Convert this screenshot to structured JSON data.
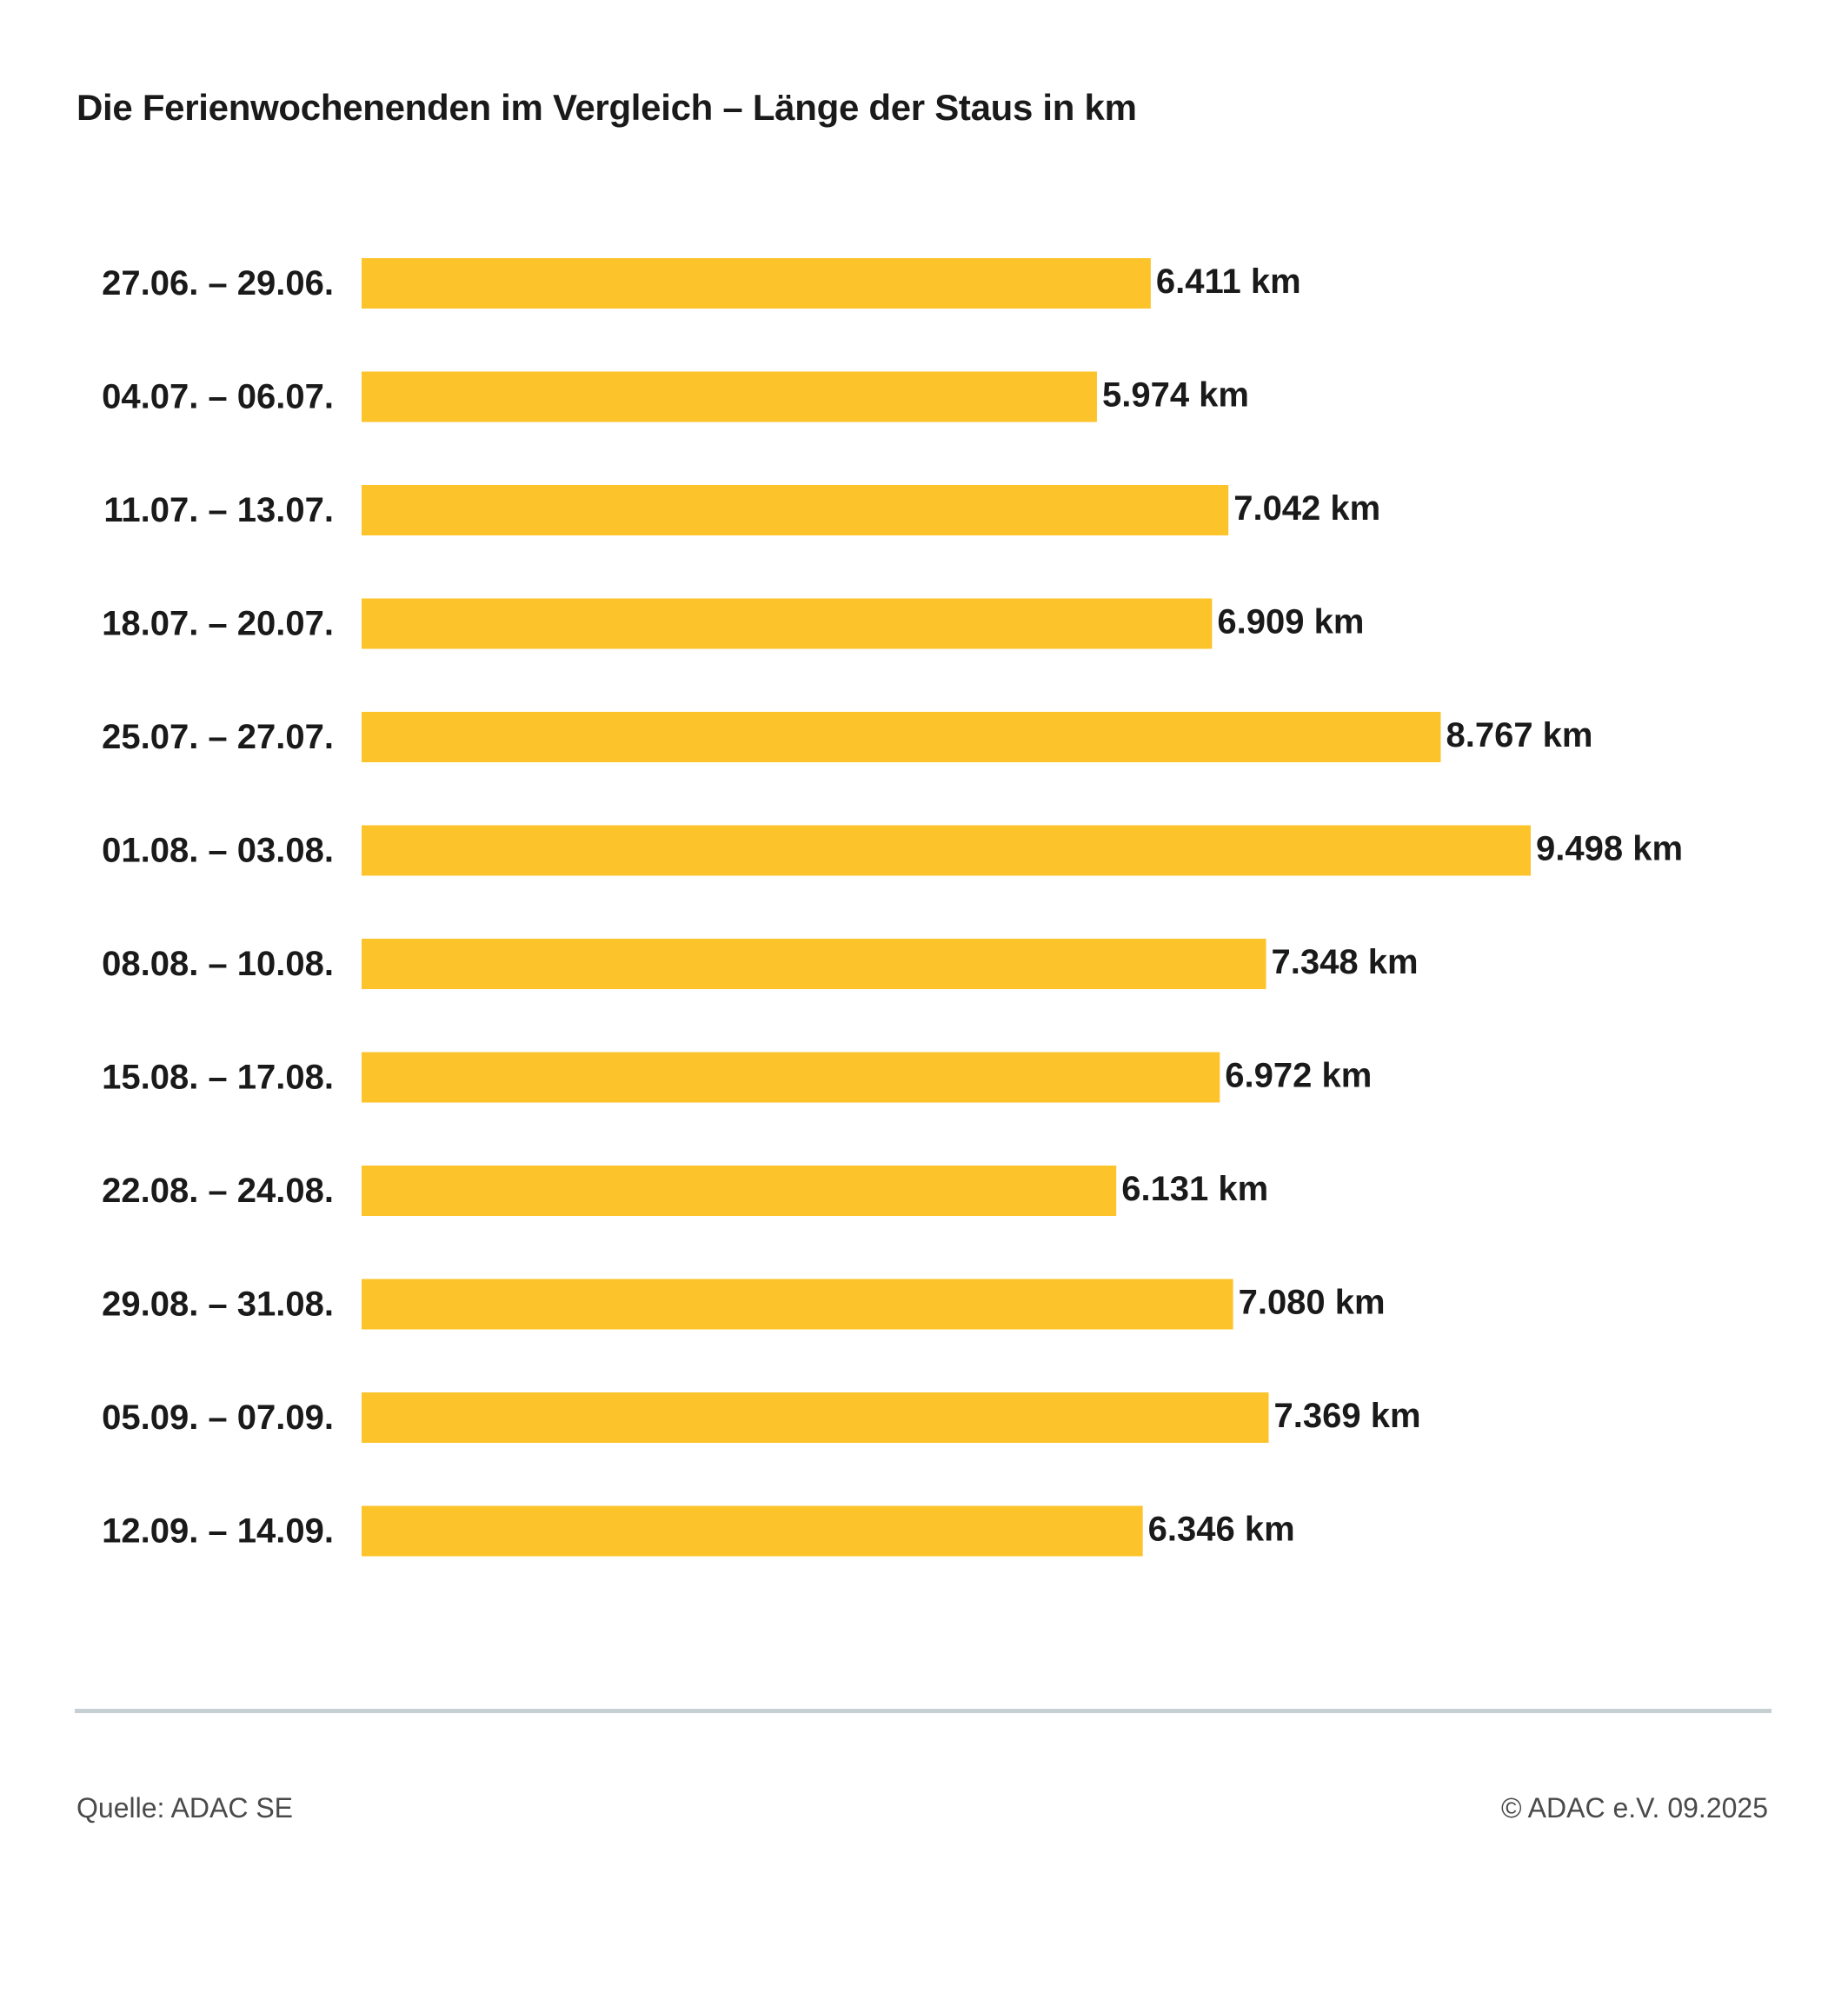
{
  "chart_data": {
    "type": "bar",
    "orientation": "horizontal",
    "title": "Die Ferienwochenenden im Vergleich – Länge der Staus in km",
    "categories": [
      "27.06. – 29.06.",
      "04.07. – 06.07.",
      "11.07. – 13.07.",
      "18.07. – 20.07.",
      "25.07. – 27.07.",
      "01.08. – 03.08.",
      "08.08. – 10.08.",
      "15.08. – 17.08.",
      "22.08. – 24.08.",
      "29.08. – 31.08.",
      "05.09. – 07.09.",
      "12.09. – 14.09."
    ],
    "values": [
      6411,
      5974,
      7042,
      6909,
      8767,
      9498,
      7348,
      6972,
      6131,
      7080,
      7369,
      6346
    ],
    "value_labels": [
      "6.411 km",
      "5.974 km",
      "7.042 km",
      "6.909 km",
      "8.767 km",
      "9.498 km",
      "7.348 km",
      "6.972 km",
      "6.131 km",
      "7.080 km",
      "7.369 km",
      "6.346 km"
    ],
    "xlabel": "",
    "ylabel": "",
    "xlim": [
      0,
      9498
    ],
    "grid": false,
    "legend": "none",
    "bar_color": "#fcc42a"
  },
  "footer": {
    "source": "Quelle: ADAC SE",
    "copyright": "© ADAC e.V. 09.2025"
  }
}
